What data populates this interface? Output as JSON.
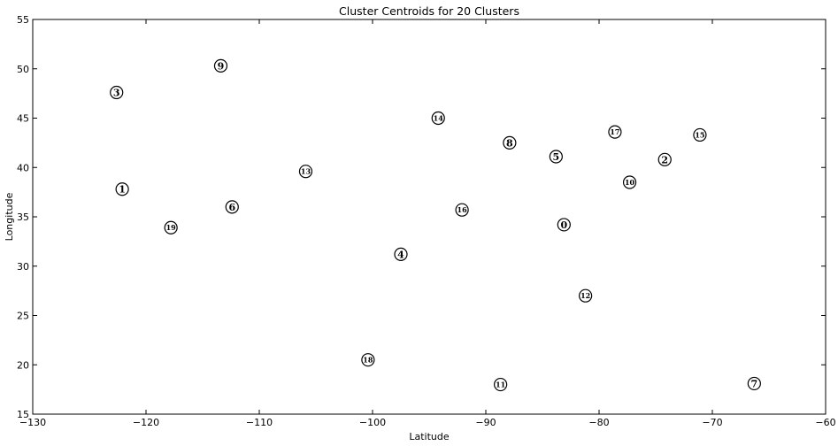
{
  "chart_data": {
    "type": "scatter",
    "title": "Cluster Centroids for 20 Clusters",
    "xlabel": "Latitude",
    "ylabel": "Longitude",
    "xlim": [
      -130,
      -60
    ],
    "ylim": [
      15,
      55
    ],
    "xticks": [
      -130,
      -120,
      -110,
      -100,
      -90,
      -80,
      -70,
      -60
    ],
    "yticks": [
      15,
      20,
      25,
      30,
      35,
      40,
      45,
      50,
      55
    ],
    "grid": false,
    "marker_style": "white circle with black outline containing cluster number",
    "points": [
      {
        "label": "0",
        "x": -83.1,
        "y": 34.2
      },
      {
        "label": "1",
        "x": -122.1,
        "y": 37.8
      },
      {
        "label": "2",
        "x": -74.2,
        "y": 40.8
      },
      {
        "label": "3",
        "x": -122.6,
        "y": 47.6
      },
      {
        "label": "4",
        "x": -97.5,
        "y": 31.2
      },
      {
        "label": "5",
        "x": -83.8,
        "y": 41.1
      },
      {
        "label": "6",
        "x": -112.4,
        "y": 36.0
      },
      {
        "label": "7",
        "x": -66.3,
        "y": 18.1
      },
      {
        "label": "8",
        "x": -87.9,
        "y": 42.5
      },
      {
        "label": "9",
        "x": -113.4,
        "y": 50.3
      },
      {
        "label": "10",
        "x": -77.3,
        "y": 38.5
      },
      {
        "label": "11",
        "x": -88.7,
        "y": 18.0
      },
      {
        "label": "12",
        "x": -81.2,
        "y": 27.0
      },
      {
        "label": "13",
        "x": -105.9,
        "y": 39.6
      },
      {
        "label": "14",
        "x": -94.2,
        "y": 45.0
      },
      {
        "label": "15",
        "x": -71.1,
        "y": 43.3
      },
      {
        "label": "16",
        "x": -92.1,
        "y": 35.7
      },
      {
        "label": "17",
        "x": -78.6,
        "y": 43.6
      },
      {
        "label": "18",
        "x": -100.4,
        "y": 20.5
      },
      {
        "label": "19",
        "x": -117.8,
        "y": 33.9
      }
    ]
  }
}
